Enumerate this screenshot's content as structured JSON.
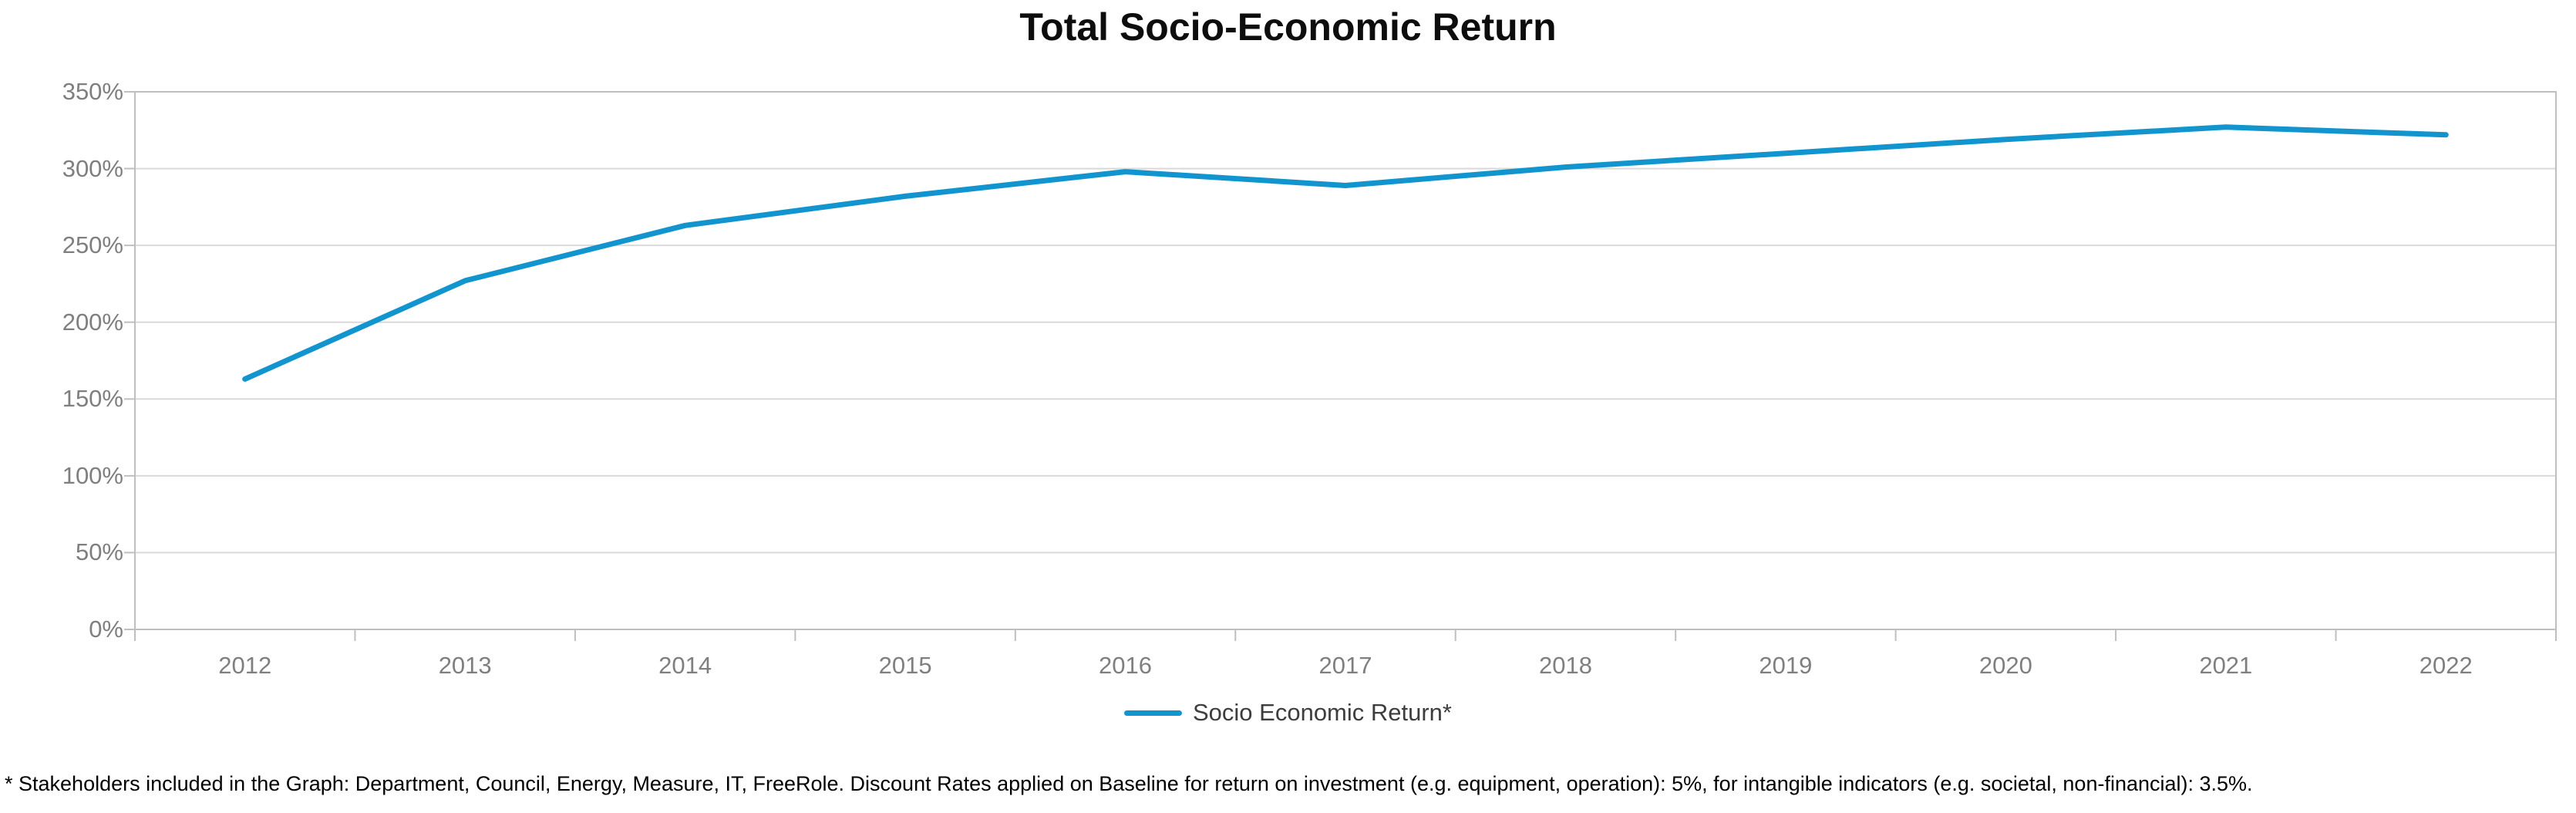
{
  "chart": {
    "title": "Total Socio-Economic Return",
    "legend": {
      "label": "Socio Economic Return*"
    },
    "footnote": "* Stakeholders included in the Graph: Department, Council, Energy, Measure, IT, FreeRole. Discount Rates applied on Baseline for return on investment (e.g. equipment, operation): 5%, for intangible indicators (e.g. societal, non-financial): 3.5%."
  },
  "chart_data": {
    "type": "line",
    "title": "Total Socio-Economic Return",
    "categories": [
      "2012",
      "2013",
      "2014",
      "2015",
      "2016",
      "2017",
      "2018",
      "2019",
      "2020",
      "2021",
      "2022"
    ],
    "series": [
      {
        "name": "Socio Economic Return*",
        "values": [
          163,
          227,
          263,
          282,
          298,
          289,
          301,
          310,
          319,
          327,
          322
        ]
      }
    ],
    "xlabel": "",
    "ylabel": "",
    "ylim": [
      0,
      350
    ],
    "ytick_step": 50,
    "ytick_format": "percent",
    "grid": "horizontal-only",
    "legend_position": "bottom-center",
    "colors": {
      "line": "#1295ce",
      "gridline": "#d9d9d9",
      "axis": "#bfbfbf",
      "tick_label": "#7f7f7f",
      "title": "#0d0d0d",
      "legend_text": "#3d3d3d",
      "footnote": "#000000",
      "background": "#ffffff"
    }
  }
}
